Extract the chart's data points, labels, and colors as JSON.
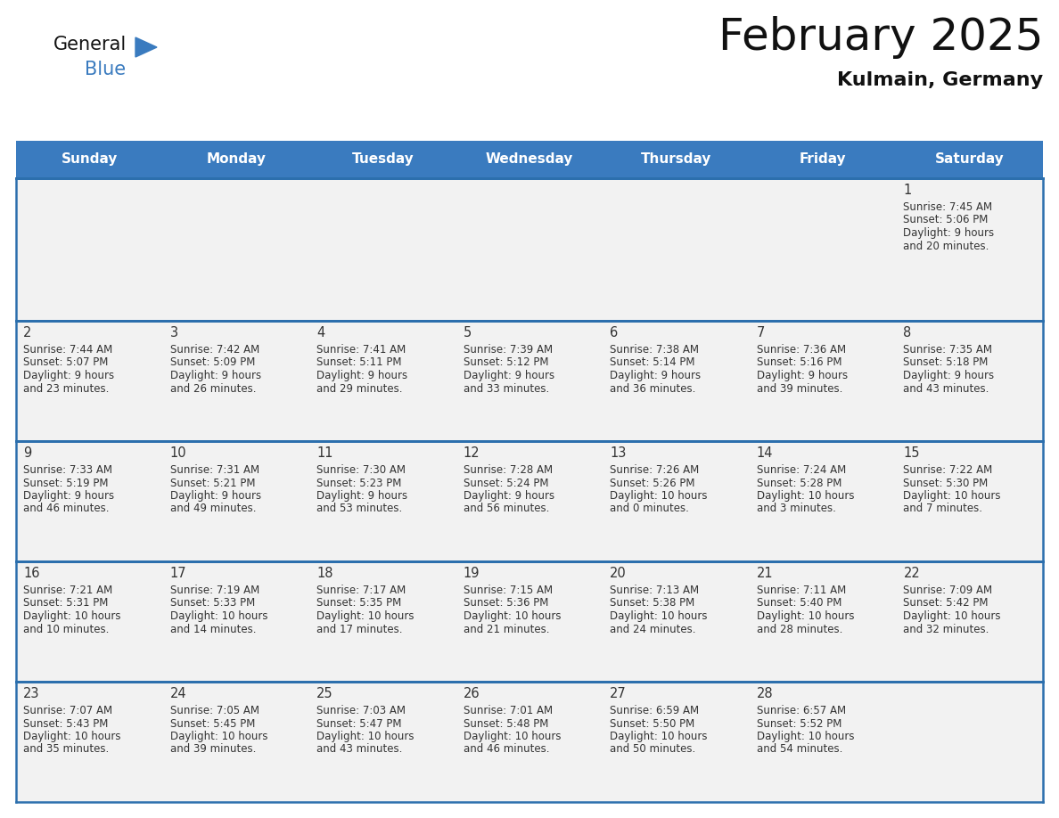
{
  "title": "February 2025",
  "subtitle": "Kulmain, Germany",
  "days_of_week": [
    "Sunday",
    "Monday",
    "Tuesday",
    "Wednesday",
    "Thursday",
    "Friday",
    "Saturday"
  ],
  "header_bg": "#3a7bbf",
  "header_text": "#ffffff",
  "cell_bg": "#f2f2f2",
  "cell_bg_white": "#ffffff",
  "border_color": "#2c6fad",
  "day_number_color": "#333333",
  "info_color": "#333333",
  "calendar_data": [
    [
      {
        "day": null
      },
      {
        "day": null
      },
      {
        "day": null
      },
      {
        "day": null
      },
      {
        "day": null
      },
      {
        "day": null
      },
      {
        "day": 1,
        "sunrise": "7:45 AM",
        "sunset": "5:06 PM",
        "daylight": "9 hours and 20 minutes."
      }
    ],
    [
      {
        "day": 2,
        "sunrise": "7:44 AM",
        "sunset": "5:07 PM",
        "daylight": "9 hours and 23 minutes."
      },
      {
        "day": 3,
        "sunrise": "7:42 AM",
        "sunset": "5:09 PM",
        "daylight": "9 hours and 26 minutes."
      },
      {
        "day": 4,
        "sunrise": "7:41 AM",
        "sunset": "5:11 PM",
        "daylight": "9 hours and 29 minutes."
      },
      {
        "day": 5,
        "sunrise": "7:39 AM",
        "sunset": "5:12 PM",
        "daylight": "9 hours and 33 minutes."
      },
      {
        "day": 6,
        "sunrise": "7:38 AM",
        "sunset": "5:14 PM",
        "daylight": "9 hours and 36 minutes."
      },
      {
        "day": 7,
        "sunrise": "7:36 AM",
        "sunset": "5:16 PM",
        "daylight": "9 hours and 39 minutes."
      },
      {
        "day": 8,
        "sunrise": "7:35 AM",
        "sunset": "5:18 PM",
        "daylight": "9 hours and 43 minutes."
      }
    ],
    [
      {
        "day": 9,
        "sunrise": "7:33 AM",
        "sunset": "5:19 PM",
        "daylight": "9 hours and 46 minutes."
      },
      {
        "day": 10,
        "sunrise": "7:31 AM",
        "sunset": "5:21 PM",
        "daylight": "9 hours and 49 minutes."
      },
      {
        "day": 11,
        "sunrise": "7:30 AM",
        "sunset": "5:23 PM",
        "daylight": "9 hours and 53 minutes."
      },
      {
        "day": 12,
        "sunrise": "7:28 AM",
        "sunset": "5:24 PM",
        "daylight": "9 hours and 56 minutes."
      },
      {
        "day": 13,
        "sunrise": "7:26 AM",
        "sunset": "5:26 PM",
        "daylight": "10 hours and 0 minutes."
      },
      {
        "day": 14,
        "sunrise": "7:24 AM",
        "sunset": "5:28 PM",
        "daylight": "10 hours and 3 minutes."
      },
      {
        "day": 15,
        "sunrise": "7:22 AM",
        "sunset": "5:30 PM",
        "daylight": "10 hours and 7 minutes."
      }
    ],
    [
      {
        "day": 16,
        "sunrise": "7:21 AM",
        "sunset": "5:31 PM",
        "daylight": "10 hours and 10 minutes."
      },
      {
        "day": 17,
        "sunrise": "7:19 AM",
        "sunset": "5:33 PM",
        "daylight": "10 hours and 14 minutes."
      },
      {
        "day": 18,
        "sunrise": "7:17 AM",
        "sunset": "5:35 PM",
        "daylight": "10 hours and 17 minutes."
      },
      {
        "day": 19,
        "sunrise": "7:15 AM",
        "sunset": "5:36 PM",
        "daylight": "10 hours and 21 minutes."
      },
      {
        "day": 20,
        "sunrise": "7:13 AM",
        "sunset": "5:38 PM",
        "daylight": "10 hours and 24 minutes."
      },
      {
        "day": 21,
        "sunrise": "7:11 AM",
        "sunset": "5:40 PM",
        "daylight": "10 hours and 28 minutes."
      },
      {
        "day": 22,
        "sunrise": "7:09 AM",
        "sunset": "5:42 PM",
        "daylight": "10 hours and 32 minutes."
      }
    ],
    [
      {
        "day": 23,
        "sunrise": "7:07 AM",
        "sunset": "5:43 PM",
        "daylight": "10 hours and 35 minutes."
      },
      {
        "day": 24,
        "sunrise": "7:05 AM",
        "sunset": "5:45 PM",
        "daylight": "10 hours and 39 minutes."
      },
      {
        "day": 25,
        "sunrise": "7:03 AM",
        "sunset": "5:47 PM",
        "daylight": "10 hours and 43 minutes."
      },
      {
        "day": 26,
        "sunrise": "7:01 AM",
        "sunset": "5:48 PM",
        "daylight": "10 hours and 46 minutes."
      },
      {
        "day": 27,
        "sunrise": "6:59 AM",
        "sunset": "5:50 PM",
        "daylight": "10 hours and 50 minutes."
      },
      {
        "day": 28,
        "sunrise": "6:57 AM",
        "sunset": "5:52 PM",
        "daylight": "10 hours and 54 minutes."
      },
      {
        "day": null
      }
    ]
  ]
}
